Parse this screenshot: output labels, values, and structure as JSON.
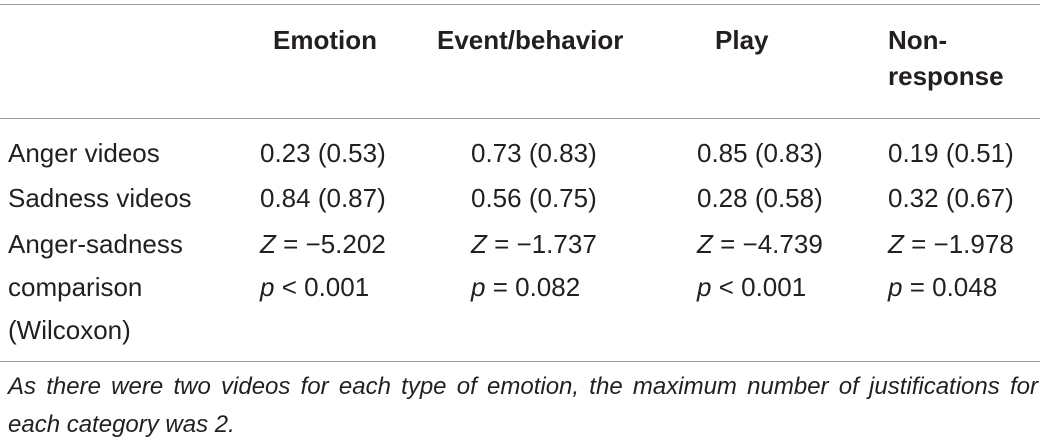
{
  "table": {
    "headers": [
      "",
      "Emotion",
      "Event/behavior",
      "Play",
      "Non-\nresponse"
    ],
    "rows": [
      {
        "label": "Anger videos",
        "values": [
          "0.23 (0.53)",
          "0.73 (0.83)",
          "0.85 (0.83)",
          "0.19 (0.51)"
        ]
      },
      {
        "label": "Sadness videos",
        "values": [
          "0.84 (0.87)",
          "0.56 (0.75)",
          "0.28 (0.58)",
          "0.32 (0.67)"
        ]
      }
    ],
    "comparison": {
      "label_lines": [
        "Anger-sadness",
        "comparison",
        "(Wilcoxon)"
      ],
      "z_symbol": "Z",
      "p_symbol": "p",
      "z_values": [
        "= −5.202",
        "= −1.737",
        "= −4.739",
        "= −1.978"
      ],
      "p_values": [
        "< 0.001",
        "= 0.082",
        "< 0.001",
        "= 0.048"
      ]
    }
  },
  "footnote": "As there were two videos for each type of emotion, the maximum number of justifications for each category was 2."
}
